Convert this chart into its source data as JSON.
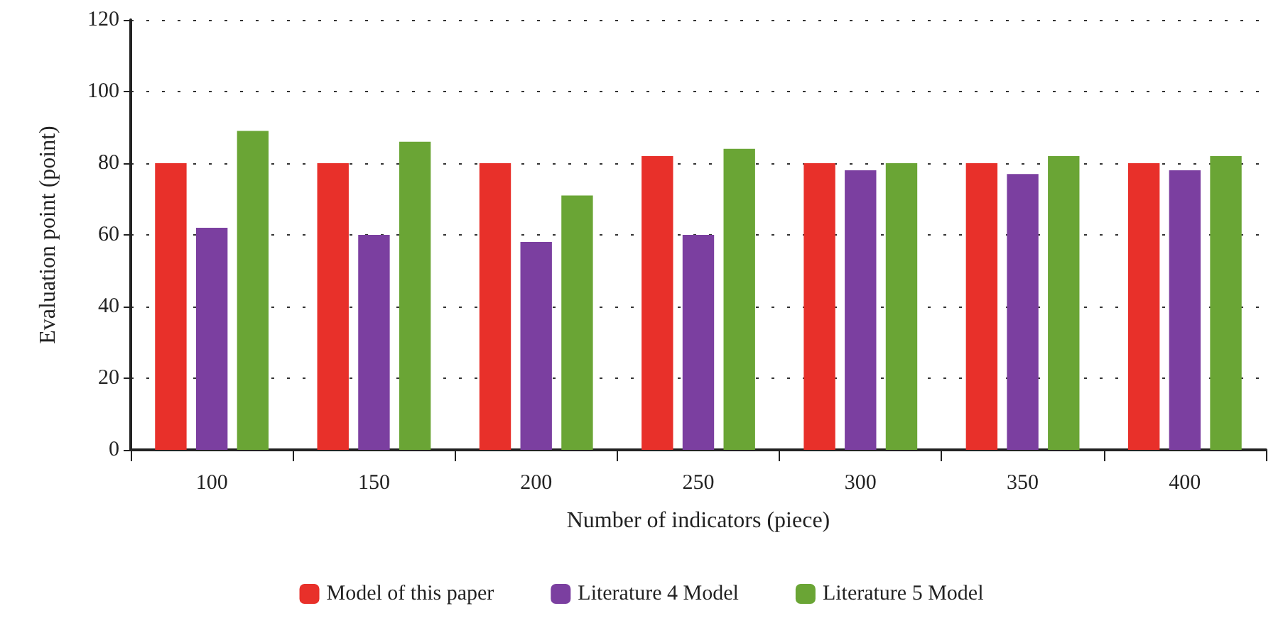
{
  "chart_data": {
    "type": "bar",
    "xlabel": "Number of indicators (piece)",
    "ylabel": "Evaluation point (point)",
    "categories": [
      "100",
      "150",
      "200",
      "250",
      "300",
      "350",
      "400"
    ],
    "series": [
      {
        "name": "Model of this paper",
        "color": "#e8302a",
        "values": [
          80,
          80,
          80,
          82,
          80,
          80,
          80
        ]
      },
      {
        "name": "Literature 4 Model",
        "color": "#7b3fa0",
        "values": [
          62,
          60,
          58,
          60,
          78,
          77,
          78
        ]
      },
      {
        "name": "Literature 5 Model",
        "color": "#6aa535",
        "values": [
          89,
          86,
          71,
          84,
          80,
          82,
          82
        ]
      }
    ],
    "ylim": [
      0,
      120
    ],
    "yticks": [
      0,
      20,
      40,
      60,
      80,
      100,
      120
    ],
    "grid": "y",
    "legend": "bottom"
  }
}
